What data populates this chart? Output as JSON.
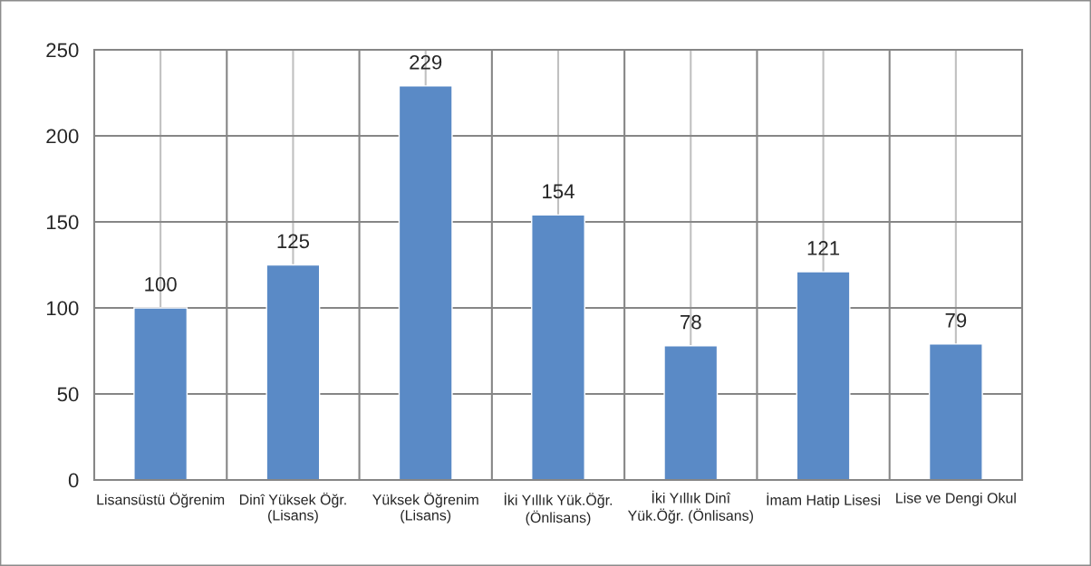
{
  "chart_data": {
    "type": "bar",
    "categories": [
      "Lisansüstü Öğrenim",
      "Dinî Yüksek Öğr.\n(Lisans)",
      "Yüksek Öğrenim\n(Lisans)",
      "İki Yıllık Yük.Öğr.\n(Önlisans)",
      "İki Yıllık Dinî\nYük.Öğr. (Önlisans)",
      "İmam Hatip Lisesi",
      "Lise ve Dengi Okul"
    ],
    "values": [
      100,
      125,
      229,
      154,
      78,
      121,
      79
    ],
    "color": "#5a8ac6",
    "ylim": [
      0,
      250
    ],
    "yticks": [
      0,
      50,
      100,
      150,
      200,
      250
    ],
    "grid": true,
    "data_labels": true
  }
}
